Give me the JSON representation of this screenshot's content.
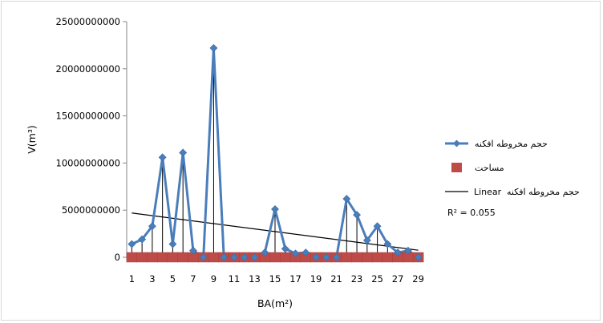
{
  "chart_data": {
    "type": "line",
    "xlabel": "BA(m²)",
    "ylabel": "V(m³)",
    "ylim": [
      0,
      25000000000
    ],
    "y_ticks": [
      "0",
      "5000000000",
      "10000000000",
      "15000000000",
      "20000000000",
      "25000000000"
    ],
    "x_ticks": [
      "1",
      "3",
      "5",
      "7",
      "9",
      "11",
      "13",
      "15",
      "17",
      "19",
      "21",
      "23",
      "25",
      "27",
      "29"
    ],
    "x": [
      1,
      2,
      3,
      4,
      5,
      6,
      7,
      8,
      9,
      10,
      11,
      12,
      13,
      14,
      15,
      16,
      17,
      18,
      19,
      20,
      21,
      22,
      23,
      24,
      25,
      26,
      27,
      28,
      29
    ],
    "series": [
      {
        "name": "حجم مخروطه افکنه",
        "kind": "line-marker",
        "color": "#4a7ebb",
        "values": [
          1400000000,
          1900000000,
          3300000000,
          10600000000,
          1400000000,
          11100000000,
          700000000,
          0,
          22200000000,
          0,
          0,
          0,
          0,
          500000000,
          5100000000,
          900000000,
          400000000,
          500000000,
          0,
          0,
          0,
          6200000000,
          4500000000,
          1800000000,
          3300000000,
          1400000000,
          500000000,
          700000000,
          0
        ]
      },
      {
        "name": "مساحت",
        "kind": "marker",
        "color": "#be4b48",
        "values": [
          0,
          0,
          0,
          0,
          0,
          0,
          0,
          0,
          0,
          0,
          0,
          0,
          0,
          0,
          0,
          0,
          0,
          0,
          0,
          0,
          0,
          0,
          0,
          0,
          0,
          0,
          0,
          0,
          0
        ]
      }
    ],
    "trendline": {
      "name": "حجم مخروطه افکنه",
      "type": "Linear",
      "color": "#000000",
      "from": [
        1,
        4700000000
      ],
      "to": [
        29,
        750000000
      ],
      "r2_label": "R² = 0.055"
    },
    "legend_position": "right",
    "grid": false
  }
}
